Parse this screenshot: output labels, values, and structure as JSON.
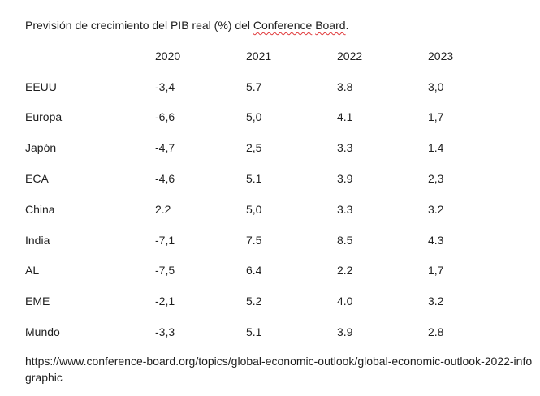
{
  "document": {
    "title_prefix": "Previsión de crecimiento del PIB real (%) del ",
    "title_flagged_1": "Conference",
    "title_space": " ",
    "title_flagged_2": "Board",
    "title_suffix": ".",
    "spellcheck_color": "#e0383a",
    "table": {
      "headers": [
        "",
        "2020",
        "2021",
        "2022",
        "2023"
      ],
      "rows": [
        [
          "EEUU",
          "-3,4",
          "5.7",
          "3.8",
          "3,0"
        ],
        [
          "Europa",
          "-6,6",
          "5,0",
          "4.1",
          "1,7"
        ],
        [
          "Japón",
          "-4,7",
          "2,5",
          "3.3",
          "1.4"
        ],
        [
          "ECA",
          "-4,6",
          "5.1",
          "3.9",
          "2,3"
        ],
        [
          "China",
          "2.2",
          "5,0",
          "3.3",
          "3.2"
        ],
        [
          "India",
          "-7,1",
          "7.5",
          "8.5",
          "4.3"
        ],
        [
          "AL",
          "-7,5",
          "6.4",
          "2.2",
          "1,7"
        ],
        [
          "EME",
          "-2,1",
          "5.2",
          "4.0",
          "3.2"
        ],
        [
          "Mundo",
          "-3,3",
          "5.1",
          "3.9",
          "2.8"
        ]
      ]
    },
    "source_url": "https://www.conference-board.org/topics/global-economic-outlook/global-economic-outlook-2022-infographic"
  }
}
